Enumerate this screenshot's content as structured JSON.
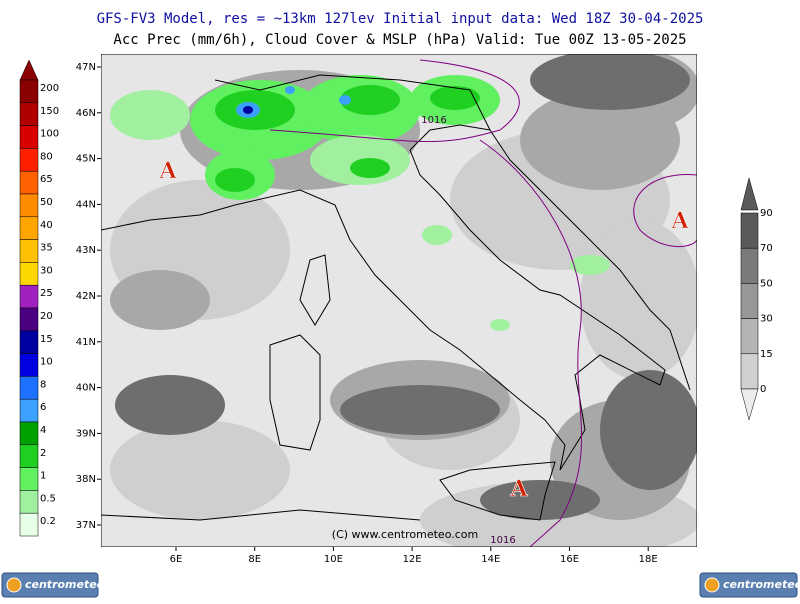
{
  "header": {
    "line1": "GFS-FV3 Model, res = ~13km 127lev   Initial input data: Wed 18Z 30-04-2025",
    "line2": "Acc Prec (mm/6h), Cloud Cover & MSLP (hPa)  Valid: Tue 00Z 13-05-2025"
  },
  "map": {
    "lat_labels": [
      "47N",
      "46N",
      "45N",
      "44N",
      "43N",
      "42N",
      "41N",
      "40N",
      "39N",
      "38N",
      "37N"
    ],
    "lon_labels": [
      "6E",
      "8E",
      "10E",
      "12E",
      "14E",
      "16E",
      "18E"
    ],
    "pressure_centers": [
      "A",
      "A",
      "A"
    ],
    "isobar_labels": [
      "1016",
      "1016"
    ],
    "credit": "(C) www.centrometeo.com"
  },
  "precip_legend": {
    "labels": [
      "200",
      "150",
      "100",
      "80",
      "65",
      "50",
      "40",
      "35",
      "30",
      "25",
      "20",
      "15",
      "10",
      "8",
      "6",
      "4",
      "2",
      "1",
      "0.5",
      "0.2"
    ]
  },
  "cloud_legend": {
    "labels": [
      "90",
      "70",
      "50",
      "30",
      "15",
      "0"
    ]
  },
  "logos": [
    "centrometeo",
    "centrometeo"
  ]
}
